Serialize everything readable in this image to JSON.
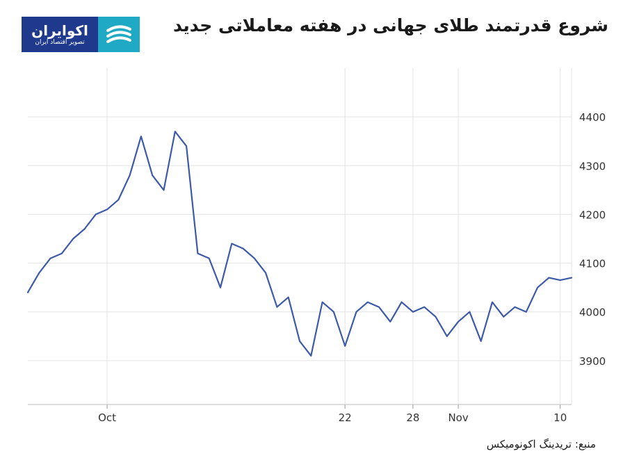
{
  "header": {
    "title": "شروع قدرتمند طلای جهانی در هفته معاملاتی جدید"
  },
  "logo": {
    "name": "اکوایران",
    "subtitle": "تصویر اقتصاد ایران",
    "icon": "swirl-logo-icon",
    "colors": {
      "text_bg": "#1f3a8c",
      "mark_bg": "#1fa9c4"
    }
  },
  "source": "منبع: تریدینگ اکونومیکس",
  "chart_data": {
    "type": "line",
    "title": "",
    "xlabel": "",
    "ylabel": "",
    "x_ticks": [
      {
        "label": "Oct",
        "date": "2025-10-01"
      },
      {
        "label": "22",
        "date": "2025-10-22"
      },
      {
        "label": "28",
        "date": "2025-10-28"
      },
      {
        "label": "Nov",
        "date": "2025-11-01"
      },
      {
        "label": "10",
        "date": "2025-11-10"
      }
    ],
    "y_ticks": [
      3900,
      4000,
      4100,
      4200,
      4300,
      4400
    ],
    "ylim": [
      3810,
      4500
    ],
    "xlim": [
      "2025-09-24",
      "2025-11-11"
    ],
    "grid": true,
    "y_axis_side": "right",
    "line_color": "#3d5aa8",
    "series": [
      {
        "name": "",
        "x": [
          "2025-09-24",
          "2025-09-25",
          "2025-09-26",
          "2025-09-27",
          "2025-09-28",
          "2025-09-29",
          "2025-09-30",
          "2025-10-01",
          "2025-10-02",
          "2025-10-03",
          "2025-10-04",
          "2025-10-05",
          "2025-10-06",
          "2025-10-07",
          "2025-10-08",
          "2025-10-09",
          "2025-10-10",
          "2025-10-11",
          "2025-10-12",
          "2025-10-13",
          "2025-10-14",
          "2025-10-15",
          "2025-10-16",
          "2025-10-17",
          "2025-10-18",
          "2025-10-19",
          "2025-10-20",
          "2025-10-21",
          "2025-10-22",
          "2025-10-23",
          "2025-10-24",
          "2025-10-25",
          "2025-10-26",
          "2025-10-27",
          "2025-10-28",
          "2025-10-29",
          "2025-10-30",
          "2025-10-31",
          "2025-11-01",
          "2025-11-02",
          "2025-11-03",
          "2025-11-04",
          "2025-11-05",
          "2025-11-06",
          "2025-11-07",
          "2025-11-08",
          "2025-11-09",
          "2025-11-10",
          "2025-11-11"
        ],
        "values": [
          4040,
          4080,
          4110,
          4120,
          4150,
          4170,
          4200,
          4210,
          4230,
          4280,
          4360,
          4280,
          4250,
          4370,
          4340,
          4120,
          4110,
          4050,
          4140,
          4130,
          4110,
          4080,
          4010,
          4030,
          3940,
          3910,
          4020,
          4000,
          3930,
          4000,
          4020,
          4010,
          3980,
          4020,
          4000,
          4010,
          3990,
          3950,
          3980,
          4000,
          3940,
          4020,
          3990,
          4010,
          4000,
          4050,
          4070,
          4065,
          4070
        ]
      }
    ]
  }
}
